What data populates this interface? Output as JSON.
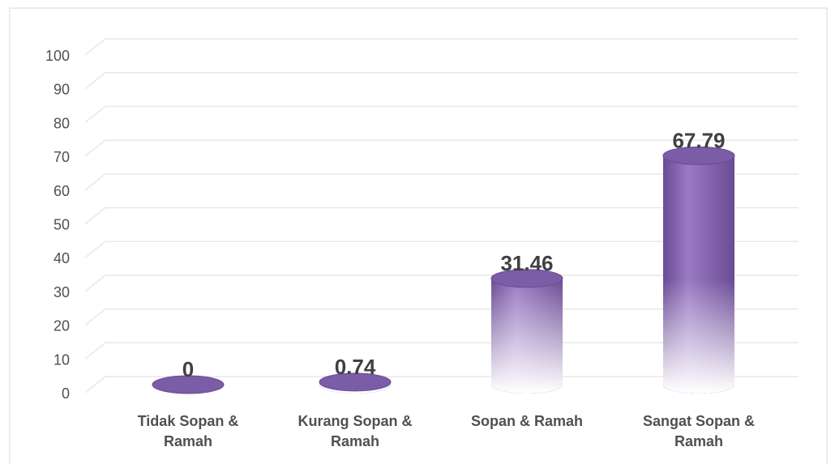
{
  "chart_data": {
    "type": "bar3d",
    "categories": [
      "Tidak Sopan & Ramah",
      "Kurang Sopan & Ramah",
      "Sopan & Ramah",
      "Sangat Sopan & Ramah"
    ],
    "values": [
      0,
      0.74,
      31.46,
      67.79
    ],
    "color": "#7b5ca6",
    "ylim": [
      0,
      100
    ],
    "yticks": [
      0,
      10,
      20,
      30,
      40,
      50,
      60,
      70,
      80,
      90,
      100
    ],
    "grid": true
  }
}
